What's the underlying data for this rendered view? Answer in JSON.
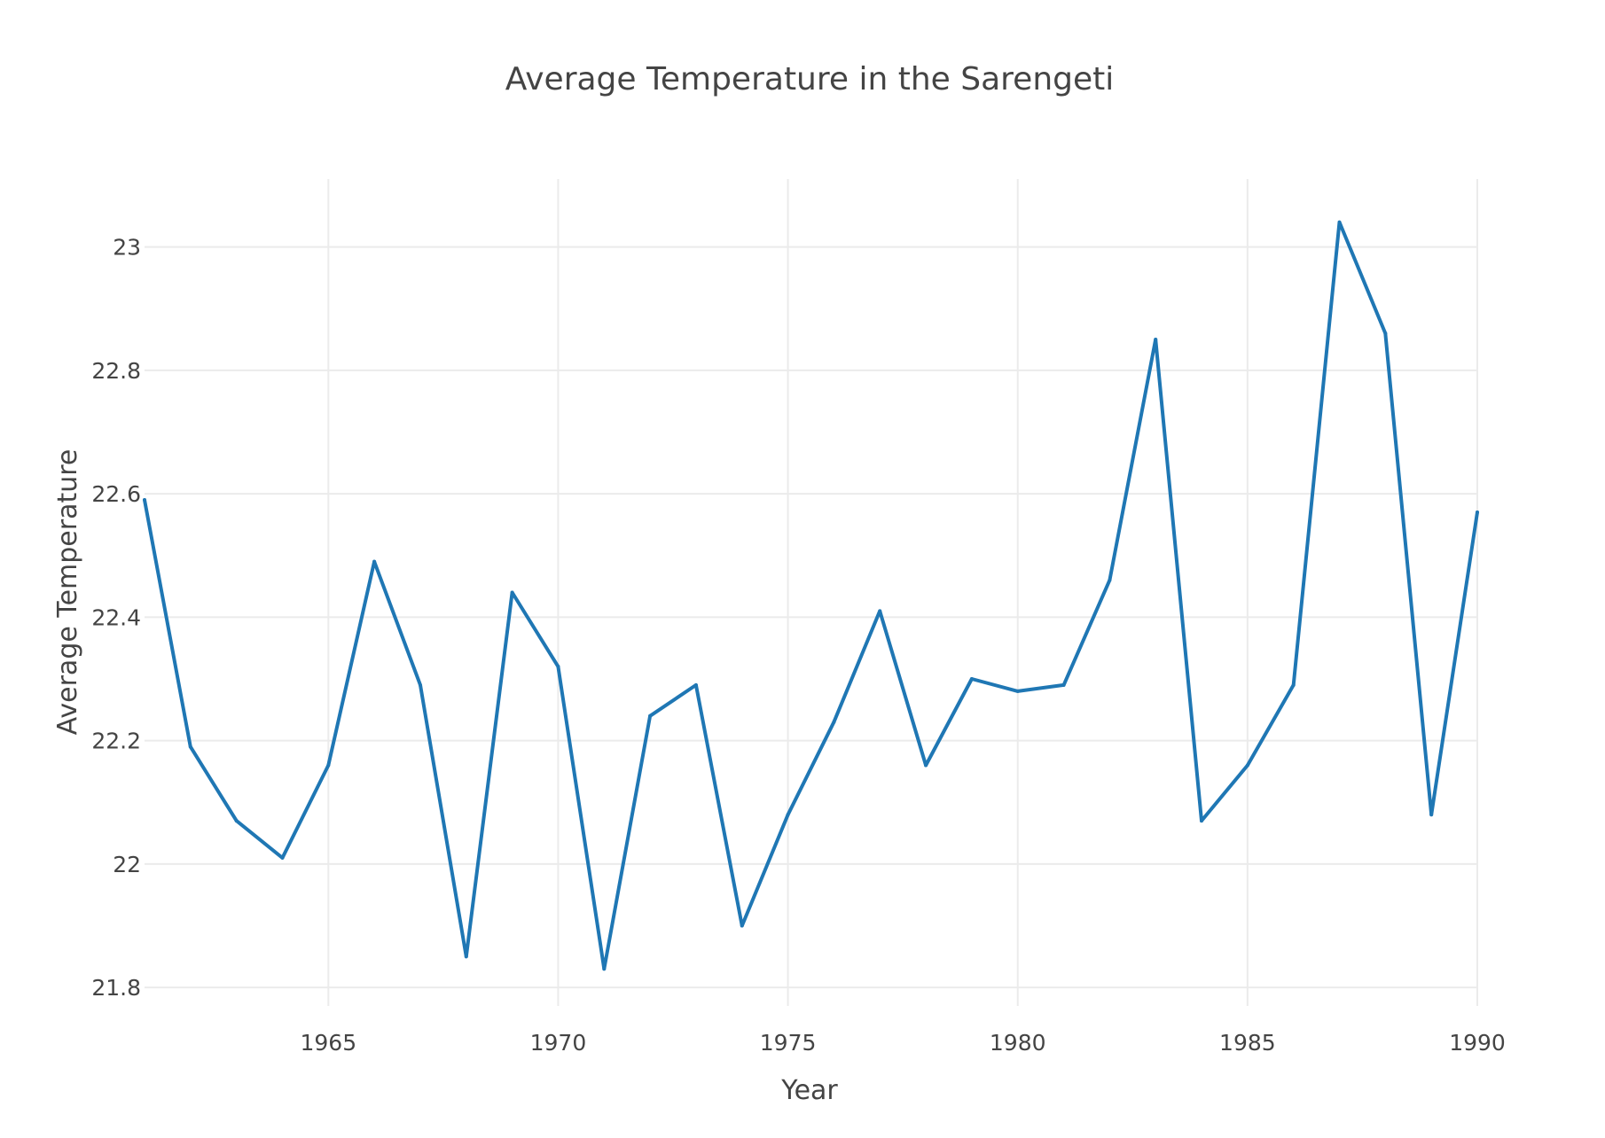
{
  "chart_data": {
    "type": "line",
    "title": "Average Temperature in the Sarengeti",
    "xlabel": "Year",
    "ylabel": "Average Temperature",
    "xlim": [
      1961,
      1990
    ],
    "ylim": [
      21.77,
      23.11
    ],
    "xticks": [
      1965,
      1970,
      1975,
      1980,
      1985,
      1990
    ],
    "yticks": [
      21.8,
      22,
      22.2,
      22.4,
      22.6,
      22.8,
      23
    ],
    "grid": true,
    "legend": "none",
    "series": [
      {
        "color": "#1f77b4",
        "x": [
          1961,
          1962,
          1963,
          1964,
          1965,
          1966,
          1967,
          1968,
          1969,
          1970,
          1971,
          1972,
          1973,
          1974,
          1975,
          1976,
          1977,
          1978,
          1979,
          1980,
          1981,
          1982,
          1983,
          1984,
          1985,
          1986,
          1987,
          1988,
          1989,
          1990
        ],
        "values": [
          22.59,
          22.19,
          22.07,
          22.01,
          22.16,
          22.49,
          22.29,
          21.85,
          22.44,
          22.32,
          21.83,
          22.24,
          22.29,
          21.9,
          22.08,
          22.23,
          22.41,
          22.16,
          22.3,
          22.28,
          22.29,
          22.46,
          22.85,
          22.07,
          22.16,
          22.29,
          23.04,
          22.86,
          22.08,
          22.57
        ]
      }
    ]
  }
}
